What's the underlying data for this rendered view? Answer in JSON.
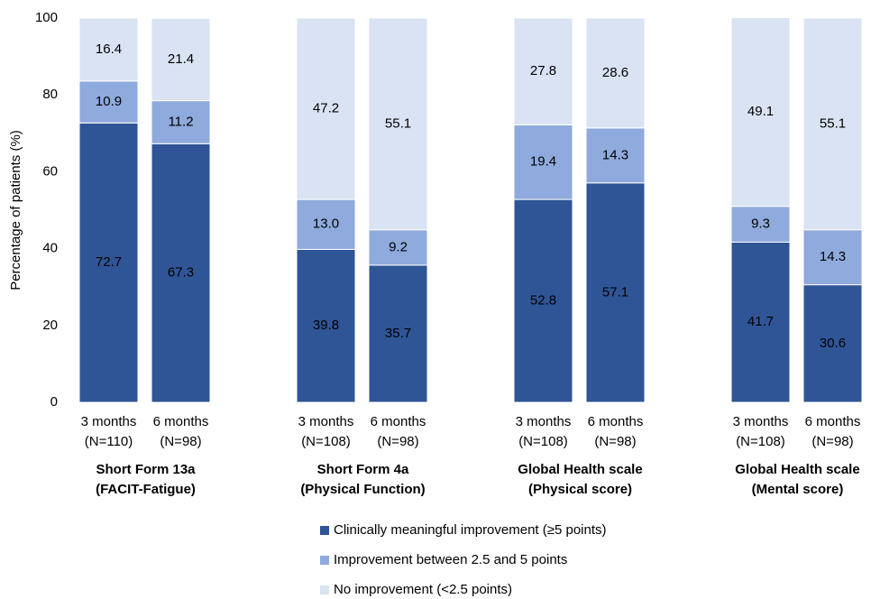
{
  "chart_data": {
    "type": "stacked_bar",
    "ylabel": "Percentage of patients (%)",
    "categories": [
      [
        "3 months",
        "(N=110)"
      ],
      [
        "6 months",
        "(N=98)"
      ],
      [
        "3 months",
        "(N=108)"
      ],
      [
        "6 months",
        "(N=98)"
      ],
      [
        "3 months",
        "(N=108)"
      ],
      [
        "6 months",
        "(N=98)"
      ],
      [
        "3 months",
        "(N=108)"
      ],
      [
        "6 months",
        "(N=98)"
      ]
    ],
    "groups": [
      [
        "Short Form 13a",
        "(FACIT-Fatigue)"
      ],
      [
        "Short Form 4a",
        "(Physical Function)"
      ],
      [
        "Global Health scale",
        "(Physical score)"
      ],
      [
        "Global Health scale",
        "(Mental score)"
      ]
    ],
    "series": [
      {
        "name": "Clinically meaningful improvement (≥5 points)",
        "color": "#2f5597",
        "values": [
          72.7,
          67.3,
          39.8,
          35.7,
          52.8,
          57.1,
          41.7,
          30.6
        ]
      },
      {
        "name": "Improvement between 2.5 and 5 points",
        "color": "#8faadc",
        "values": [
          10.9,
          11.2,
          13.0,
          9.2,
          19.4,
          14.3,
          9.3,
          14.3
        ],
        "value_labels": [
          "10.9",
          "11.2",
          "13.0",
          "9.2",
          "19.4",
          "14.3",
          "9.3",
          "14.3"
        ]
      },
      {
        "name": "No improvement (<2.5 points)",
        "color": "#dae3f3",
        "values": [
          16.4,
          21.4,
          47.2,
          55.1,
          27.8,
          28.6,
          49.1,
          55.1
        ]
      }
    ],
    "ylim": [
      0,
      100
    ],
    "yticks": [
      0,
      20,
      40,
      60,
      80,
      100
    ],
    "grid": false
  }
}
